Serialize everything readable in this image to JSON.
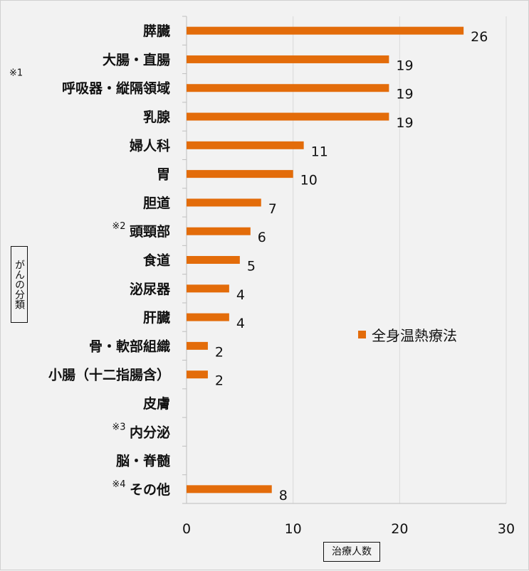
{
  "chart_data": {
    "type": "bar",
    "orientation": "horizontal",
    "categories": [
      "膵臓",
      "大腸・直腸",
      "呼吸器・縦隔領域",
      "乳腺",
      "婦人科",
      "胃",
      "胆道",
      "頭頸部",
      "食道",
      "泌尿器",
      "肝臓",
      "骨・軟部組織",
      "小腸（十二指腸含）",
      "皮膚",
      "内分泌",
      "脳・脊髄",
      "その他"
    ],
    "category_notes": [
      "",
      "",
      "※1",
      "",
      "",
      "",
      "",
      "※2",
      "",
      "",
      "",
      "",
      "",
      "",
      "※3",
      "",
      "※4"
    ],
    "series": [
      {
        "name": "全身温熱療法",
        "color": "#e36c0a",
        "values": [
          26,
          19,
          19,
          19,
          11,
          10,
          7,
          6,
          5,
          4,
          4,
          2,
          2,
          null,
          null,
          null,
          8
        ]
      }
    ],
    "xlabel": "治療人数",
    "ylabel": "がんの分類",
    "xlim": [
      0,
      30
    ],
    "xticks": [
      "0",
      "10",
      "20",
      "30"
    ],
    "grid": "vertical",
    "legend": "right",
    "data_labels": true
  }
}
